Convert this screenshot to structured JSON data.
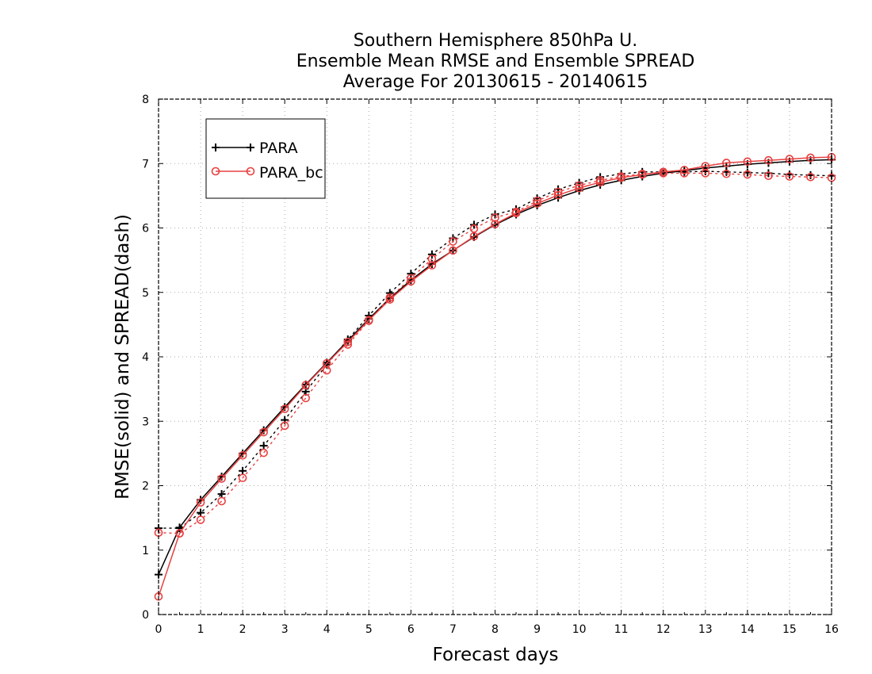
{
  "chart_data": {
    "type": "line",
    "title_lines": [
      "Southern Hemisphere 850hPa U.",
      "Ensemble Mean RMSE and Ensemble SPREAD",
      "Average For 20130615 - 20140615"
    ],
    "xlabel": "Forecast days",
    "ylabel": "RMSE(solid) and SPREAD(dash)",
    "xlim": [
      0,
      16
    ],
    "ylim": [
      0,
      8
    ],
    "xticks": [
      0,
      1,
      2,
      3,
      4,
      5,
      6,
      7,
      8,
      9,
      10,
      11,
      12,
      13,
      14,
      15,
      16
    ],
    "yticks": [
      0,
      1,
      2,
      3,
      4,
      5,
      6,
      7,
      8
    ],
    "grid": true,
    "legend_position": "top-left",
    "x": [
      0,
      0.5,
      1,
      1.5,
      2,
      2.5,
      3,
      3.5,
      4,
      4.5,
      5,
      5.5,
      6,
      6.5,
      7,
      7.5,
      8,
      8.5,
      9,
      9.5,
      10,
      10.5,
      11,
      11.5,
      12,
      12.5,
      13,
      13.5,
      14,
      14.5,
      15,
      15.5,
      16
    ],
    "series": [
      {
        "name": "PARA",
        "color": "#000000",
        "marker": "plus",
        "rmse": [
          0.62,
          1.35,
          1.78,
          2.14,
          2.5,
          2.86,
          3.22,
          3.57,
          3.91,
          4.25,
          4.59,
          4.91,
          5.19,
          5.44,
          5.65,
          5.86,
          6.05,
          6.21,
          6.35,
          6.47,
          6.58,
          6.67,
          6.74,
          6.8,
          6.85,
          6.89,
          6.93,
          6.96,
          6.99,
          7.01,
          7.03,
          7.05,
          7.06
        ],
        "spread": [
          1.34,
          1.34,
          1.58,
          1.87,
          2.23,
          2.62,
          3.02,
          3.46,
          3.88,
          4.27,
          4.64,
          4.99,
          5.29,
          5.59,
          5.84,
          6.05,
          6.21,
          6.29,
          6.46,
          6.6,
          6.7,
          6.79,
          6.84,
          6.87,
          6.87,
          6.87,
          6.88,
          6.87,
          6.86,
          6.85,
          6.83,
          6.82,
          6.81
        ]
      },
      {
        "name": "PARA_bc",
        "color": "#e84040",
        "marker": "circle",
        "rmse": [
          0.28,
          1.26,
          1.74,
          2.11,
          2.47,
          2.83,
          3.19,
          3.56,
          3.9,
          4.23,
          4.57,
          4.89,
          5.17,
          5.42,
          5.65,
          5.87,
          6.06,
          6.23,
          6.38,
          6.51,
          6.62,
          6.71,
          6.78,
          6.83,
          6.87,
          6.9,
          6.96,
          7.01,
          7.03,
          7.05,
          7.07,
          7.09,
          7.1
        ],
        "spread": [
          1.27,
          1.26,
          1.47,
          1.76,
          2.12,
          2.51,
          2.93,
          3.36,
          3.79,
          4.19,
          4.56,
          4.92,
          5.22,
          5.52,
          5.79,
          5.99,
          6.16,
          6.25,
          6.42,
          6.56,
          6.66,
          6.74,
          6.8,
          6.84,
          6.85,
          6.85,
          6.85,
          6.84,
          6.83,
          6.81,
          6.8,
          6.79,
          6.78
        ]
      }
    ]
  }
}
